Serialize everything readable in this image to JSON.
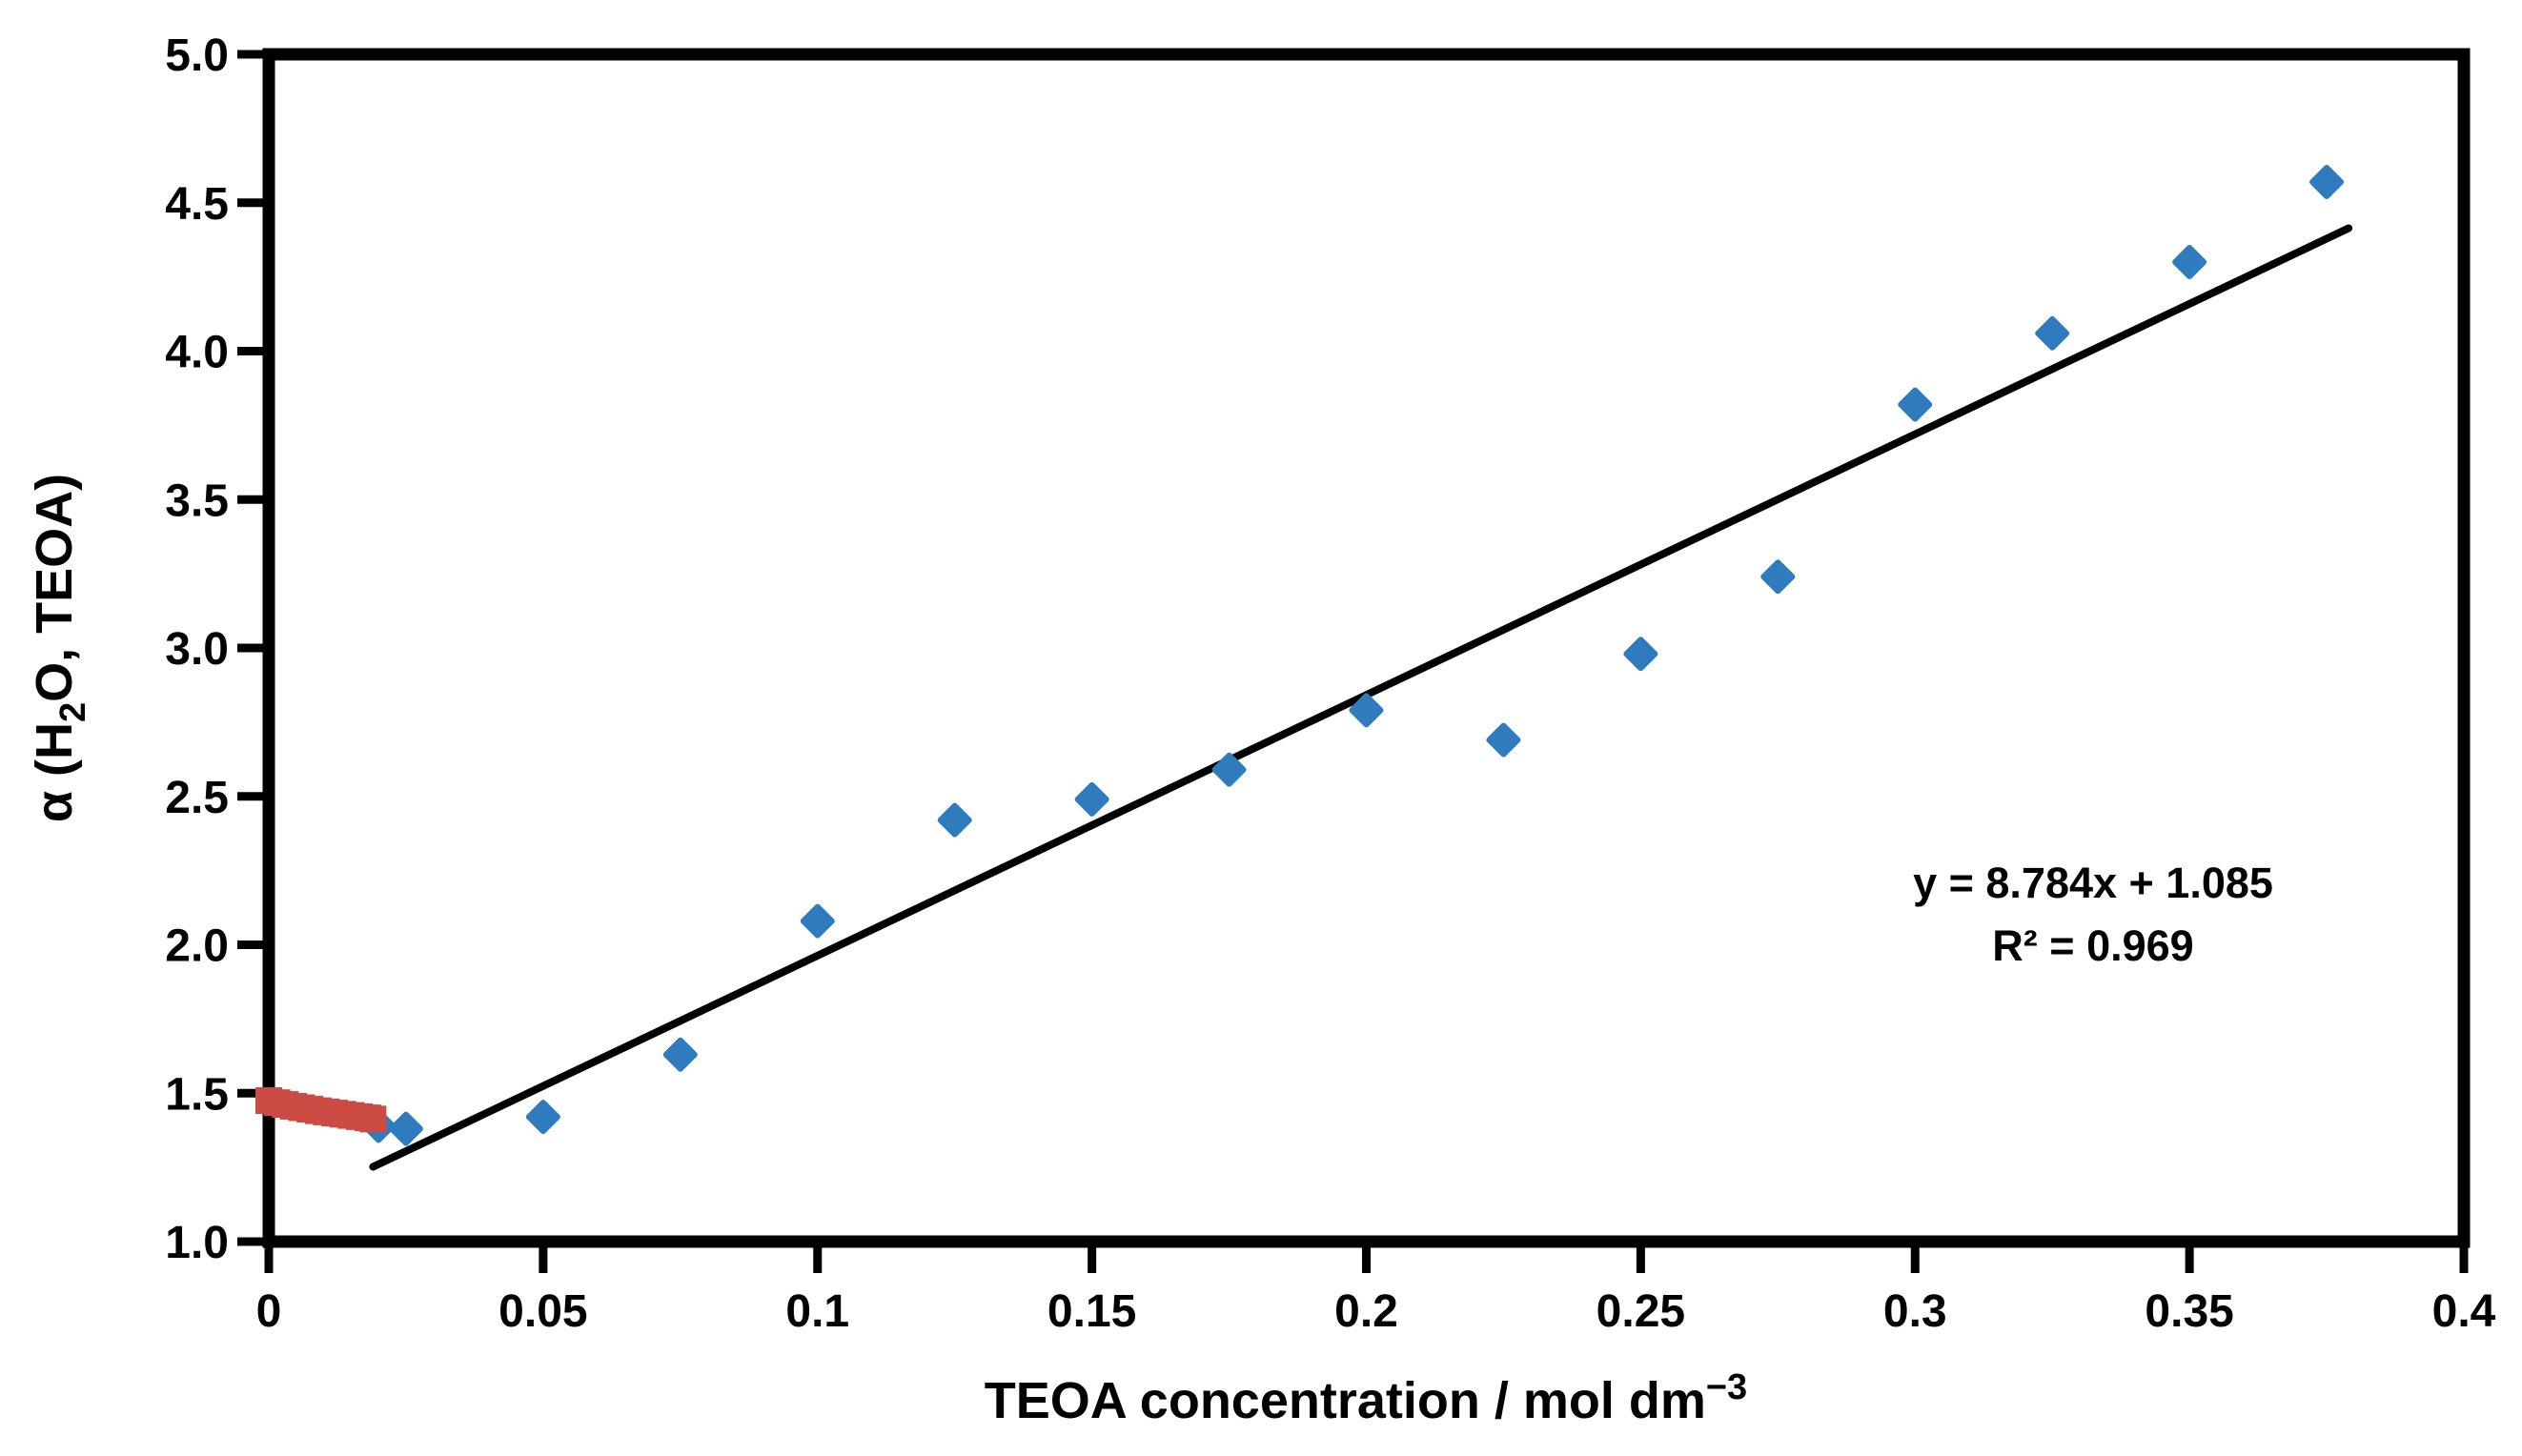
{
  "chart_data": {
    "type": "scatter",
    "title": "",
    "xlabel": "TEOA concentration / mol dm⁻³",
    "ylabel": "α (H₂O, TEOA)",
    "xlabel_parts": {
      "pre": "TEOA concentration / mol dm",
      "sup": "−3"
    },
    "ylabel_parts": {
      "pre": "α (H",
      "sub": "2",
      "post": "O, TEOA)"
    },
    "xlim": [
      0,
      0.4
    ],
    "ylim": [
      1.0,
      5.0
    ],
    "grid": false,
    "legend": "none",
    "x_ticks": [
      0,
      0.05,
      0.1,
      0.15,
      0.2,
      0.25,
      0.3,
      0.35,
      0.4
    ],
    "x_tick_labels": [
      "0",
      "0.05",
      "0.1",
      "0.15",
      "0.2",
      "0.25",
      "0.3",
      "0.35",
      "0.4"
    ],
    "y_ticks": [
      1.0,
      1.5,
      2.0,
      2.5,
      3.0,
      3.5,
      4.0,
      4.5,
      5.0
    ],
    "y_tick_labels": [
      "1.0",
      "1.5",
      "2.0",
      "2.5",
      "3.0",
      "3.5",
      "4.0",
      "4.5",
      "5.0"
    ],
    "series": [
      {
        "name": "alpha-vs-teoa-points",
        "marker": "diamond",
        "color": "#2e7cbd",
        "points": [
          [
            0.02,
            1.39
          ],
          [
            0.025,
            1.38
          ],
          [
            0.05,
            1.42
          ],
          [
            0.075,
            1.63
          ],
          [
            0.1,
            2.08
          ],
          [
            0.125,
            2.42
          ],
          [
            0.15,
            2.49
          ],
          [
            0.175,
            2.59
          ],
          [
            0.2,
            2.79
          ],
          [
            0.225,
            2.69
          ],
          [
            0.25,
            2.98
          ],
          [
            0.275,
            3.24
          ],
          [
            0.3,
            3.82
          ],
          [
            0.325,
            4.06
          ],
          [
            0.35,
            4.3
          ],
          [
            0.375,
            4.57
          ]
        ]
      },
      {
        "name": "low-concentration-red-cluster",
        "marker": "square",
        "color": "#cc4b44",
        "points": [
          [
            0.0,
            1.475
          ],
          [
            0.0015,
            1.468
          ],
          [
            0.003,
            1.462
          ],
          [
            0.0045,
            1.456
          ],
          [
            0.006,
            1.451
          ],
          [
            0.0075,
            1.446
          ],
          [
            0.009,
            1.441
          ],
          [
            0.0105,
            1.437
          ],
          [
            0.012,
            1.433
          ],
          [
            0.0135,
            1.429
          ],
          [
            0.015,
            1.425
          ],
          [
            0.0165,
            1.421
          ],
          [
            0.018,
            1.417
          ],
          [
            0.019,
            1.413
          ]
        ]
      }
    ],
    "trendline": {
      "color": "#000000",
      "slope": 8.784,
      "intercept": 1.085,
      "x_start": 0.019,
      "x_end": 0.379,
      "equation": "y = 8.784x + 1.085",
      "r_squared": "R² = 0.969"
    }
  },
  "colors": {
    "point_blue": "#2e7cbd",
    "point_red": "#cc4b44",
    "trendline": "#000000",
    "axis": "#000000",
    "background": "#ffffff"
  }
}
